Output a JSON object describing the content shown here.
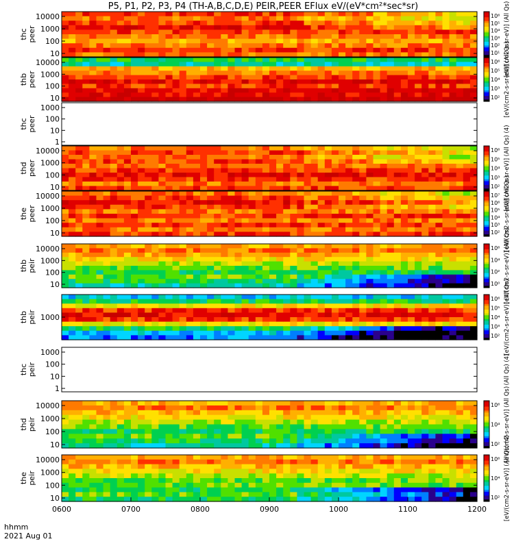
{
  "title": "P5, P1, P2, P3, P4 (TH-A,B,C,D,E) PEIR,PEER EFlux eV/(eV*cm²*sec*sr)",
  "footer": {
    "label_line1": "hhmm",
    "label_line2": "2021 Aug 01"
  },
  "colors": {
    "palette": [
      "#000000",
      "#2a008c",
      "#0000ff",
      "#007fff",
      "#00d5ff",
      "#00c8a0",
      "#00d050",
      "#50e000",
      "#c8e000",
      "#ffe000",
      "#ffb000",
      "#ff7a00",
      "#ff3000",
      "#e00000",
      "#c80000"
    ]
  },
  "chart_data": {
    "type": "heatmap",
    "x_axis": {
      "label": "hhmm",
      "ticks": [
        "0600",
        "0700",
        "0800",
        "0900",
        "1000",
        "1100",
        "1200"
      ]
    },
    "panels": [
      {
        "name": "thc peer",
        "ylabel": [
          "thc",
          "peer"
        ],
        "yticks": [
          "10",
          "100",
          "1000",
          "10000"
        ],
        "ylog": true,
        "empty": false,
        "cb_ticks": [
          "10⁶",
          "10⁵",
          "10⁴",
          "10³",
          "10²",
          "10¹"
        ],
        "cb_label": "[eV/(cm2-s-sr-eV)] (All Qs) (4)"
      },
      {
        "name": "thb peer",
        "ylabel": [
          "thb",
          "peer"
        ],
        "yticks": [
          "10",
          "100",
          "1000",
          "10000"
        ],
        "ylog": true,
        "empty": false,
        "cb_ticks": [
          "10⁶",
          "10⁵",
          "10⁴",
          "10³",
          "10²"
        ],
        "cb_label": "[eV/(cm2-s-sr-eV)] (All Qs)"
      },
      {
        "name": "thc peer",
        "ylabel": [
          "thc",
          "peer"
        ],
        "yticks": [
          "1",
          "10",
          "100",
          "1000"
        ],
        "ylog": true,
        "empty": true,
        "cb_ticks": [],
        "cb_label": ""
      },
      {
        "name": "thd peer",
        "ylabel": [
          "thd",
          "peer"
        ],
        "yticks": [
          "10",
          "100",
          "1000",
          "10000"
        ],
        "ylog": true,
        "empty": false,
        "cb_ticks": [
          "10⁶",
          "10⁵",
          "10⁴",
          "10³",
          "10²"
        ],
        "cb_label": "[eV/(cm2-s-sr-eV)] (All Qs) (4)"
      },
      {
        "name": "the peer",
        "ylabel": [
          "the",
          "peer"
        ],
        "yticks": [
          "10",
          "100",
          "1000",
          "10000"
        ],
        "ylog": true,
        "empty": false,
        "cb_ticks": [
          "10⁷",
          "10⁶",
          "10⁵",
          "10⁴",
          "10³",
          "10²"
        ],
        "cb_label": "[eV/(cm2-s-sr-eV)] (All Qs)"
      },
      {
        "name": "thb peir",
        "ylabel": [
          "thb",
          "peir"
        ],
        "yticks": [
          "10",
          "100",
          "1000",
          "10000"
        ],
        "ylog": true,
        "empty": false,
        "cb_ticks": [
          "10⁶",
          "10⁴",
          "10²",
          "10⁰"
        ],
        "cb_label": "[eV/(cm2-s-sr-eV)] (All Qs)"
      },
      {
        "name": "thb peir",
        "ylabel": [
          "thb",
          "peir"
        ],
        "yticks": [
          "1000"
        ],
        "ylog": true,
        "empty": false,
        "cb_ticks": [
          "10⁶",
          "10⁵",
          "10⁴",
          "10³",
          "10²"
        ],
        "cb_label": "[eV/(cm2-s-sr-eV)] (All Qs)"
      },
      {
        "name": "thc peir",
        "ylabel": [
          "thc",
          "peir"
        ],
        "yticks": [
          "1",
          "10",
          "100",
          "1000"
        ],
        "ylog": true,
        "empty": true,
        "cb_ticks": [],
        "cb_label": "(All Qs) (4)"
      },
      {
        "name": "thd peir",
        "ylabel": [
          "thd",
          "peir"
        ],
        "yticks": [
          "10",
          "100",
          "1000",
          "10000"
        ],
        "ylog": true,
        "empty": false,
        "cb_ticks": [
          "10⁶",
          "10⁴",
          "10²"
        ],
        "cb_label": "[eV/(cm2-s-sr-eV)] (All Qs)"
      },
      {
        "name": "the peir",
        "ylabel": [
          "the",
          "peir"
        ],
        "yticks": [
          "10",
          "100",
          "1000",
          "10000"
        ],
        "ylog": true,
        "empty": false,
        "cb_ticks": [
          "10⁶",
          "10⁴",
          "10²"
        ],
        "cb_label": "[eV/(cm2-s-sr-eV)] (All Qs) (4)"
      }
    ]
  }
}
